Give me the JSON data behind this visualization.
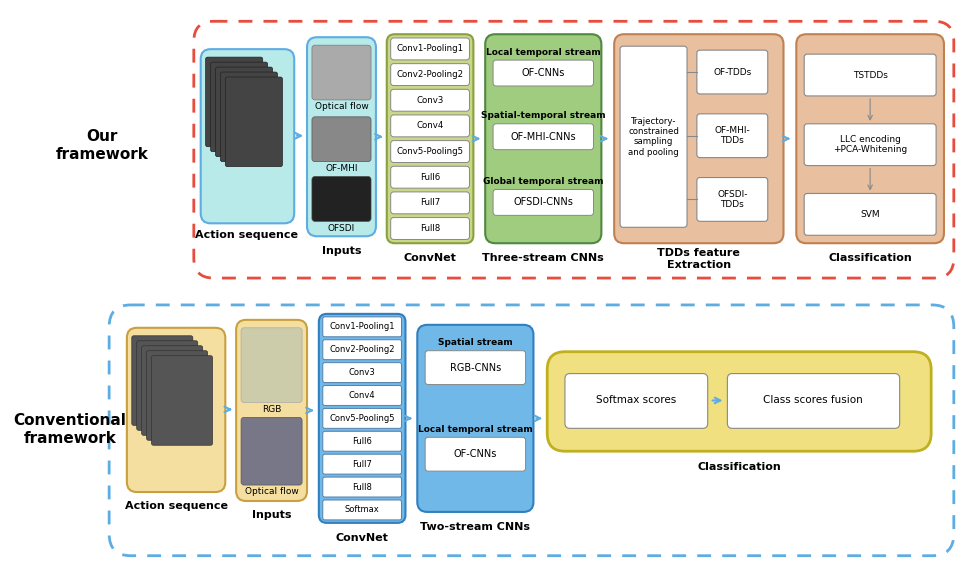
{
  "top_frame_color": "#e74c3c",
  "bottom_frame_color": "#5dade2",
  "arrow_color": "#5dade2",
  "label_top": "Our\nframework",
  "label_bottom": "Conventional\nframework",
  "top_inputs_label": "Inputs",
  "top_convnet_label": "ConvNet",
  "top_threestream_label": "Three-stream CNNs",
  "top_tdds_label": "TDDs feature\nExtraction",
  "top_classif_label": "Classification",
  "bottom_inputs_label": "Inputs",
  "bottom_convnet_label": "ConvNet",
  "bottom_twostream_label": "Two-stream CNNs",
  "bottom_classif_label": "Classification",
  "top_action_label": "Action sequence",
  "bottom_action_label": "Action sequence",
  "top_conv_items": [
    "Conv1-Pooling1",
    "Conv2-Pooling2",
    "Conv3",
    "Conv4",
    "Conv5-Pooling5",
    "Full6",
    "Full7",
    "Full8"
  ],
  "top_stream_labels": [
    "Local temporal stream",
    "Spatial-temporal stream",
    "Global temporal stream"
  ],
  "top_stream_boxes": [
    "OF-CNNs",
    "OF-MHI-CNNs",
    "OFSDI-CNNs"
  ],
  "top_tdds_left_label": "Trajectory-\nconstrained\nsampling\nand pooling",
  "top_tdds_right_items": [
    "OF-TDDs",
    "OF-MHI-\nTDDs",
    "OFSDI-\nTDDs"
  ],
  "top_classif_items": [
    "TSTDDs",
    "LLC encoding\n+PCA-Whitening",
    "SVM"
  ],
  "bottom_conv_items": [
    "Conv1-Pooling1",
    "Conv2-Pooling2",
    "Conv3",
    "Conv4",
    "Conv5-Pooling5",
    "Full6",
    "Full7",
    "Full8",
    "Softmax"
  ],
  "bottom_stream_labels": [
    "Spatial stream",
    "Local temporal stream"
  ],
  "bottom_stream_boxes": [
    "RGB-CNNs",
    "OF-CNNs"
  ],
  "bottom_classif_items": [
    "Softmax scores",
    "Class scores fusion"
  ],
  "action_seq_top_color": "#b8eaea",
  "action_seq_top_edge": "#5dade2",
  "action_seq_bot_color": "#f5dfa0",
  "action_seq_bot_edge": "#c8a040",
  "inputs_top_color": "#b8eaea",
  "inputs_top_edge": "#5dade2",
  "inputs_bot_color": "#b8d8f0",
  "inputs_bot_edge": "#5dade2",
  "convnet_top_color": "#c8d888",
  "convnet_top_edge": "#8aa040",
  "convnet_bot_color": "#70b8e8",
  "convnet_bot_edge": "#3080c0",
  "threestream_color": "#a0cc80",
  "threestream_edge": "#508840",
  "tdds_color": "#e8c0a0",
  "tdds_edge": "#c08050",
  "classif_top_color": "#e8c0a0",
  "classif_top_edge": "#c08050",
  "classif_bot_color": "#f0e080",
  "classif_bot_edge": "#c0b020",
  "twostream_color": "#70b8e8",
  "twostream_edge": "#3080c0"
}
